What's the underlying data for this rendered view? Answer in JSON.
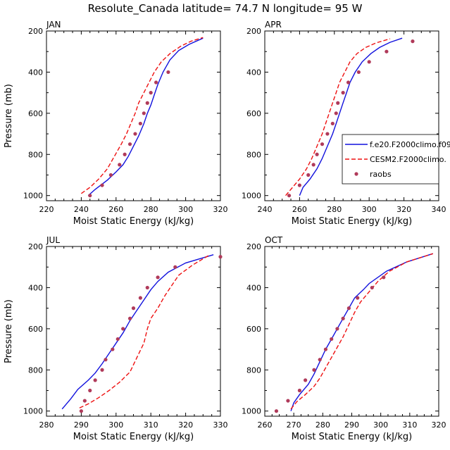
{
  "title": "Resolute_Canada  latitude= 74.7 N longitude= 95 W",
  "colors": {
    "model1": "#1111dd",
    "model2": "#ee1111",
    "obs": "#b03a5a"
  },
  "legend": {
    "panel": 1,
    "placement": "right",
    "entries": [
      {
        "label": "f.e20.F2000climo.f09",
        "style": "solid",
        "color": "#1111dd"
      },
      {
        "label": "CESM2.F2000climo.",
        "style": "dashed",
        "color": "#ee1111"
      },
      {
        "label": "raobs",
        "style": "dot",
        "color": "#b03a5a"
      }
    ]
  },
  "chart_data": [
    {
      "type": "line",
      "month": "JAN",
      "xlabel": "Moist Static Energy (kJ/kg)",
      "ylabel": "Pressure (mb)",
      "xlim": [
        220,
        320
      ],
      "ylim": [
        1025,
        200
      ],
      "y_inverted": true,
      "xticks": [
        220,
        240,
        260,
        280,
        300,
        320
      ],
      "yticks": [
        200,
        400,
        600,
        800,
        1000
      ],
      "series": [
        {
          "style": "solid",
          "color": "#1111dd",
          "points": [
            [
              244,
              1000
            ],
            [
              248,
              970
            ],
            [
              255,
              925
            ],
            [
              260,
              885
            ],
            [
              264,
              850
            ],
            [
              267,
              810
            ],
            [
              270,
              760
            ],
            [
              273,
              710
            ],
            [
              276,
              650
            ],
            [
              278,
              600
            ],
            [
              280,
              560
            ],
            [
              282,
              510
            ],
            [
              284,
              460
            ],
            [
              287,
              400
            ],
            [
              291,
              340
            ],
            [
              296,
              295
            ],
            [
              302,
              265
            ],
            [
              310,
              235
            ]
          ]
        },
        {
          "style": "dashed",
          "color": "#ee1111",
          "points": [
            [
              240,
              990
            ],
            [
              245,
              960
            ],
            [
              250,
              920
            ],
            [
              255,
              870
            ],
            [
              259,
              810
            ],
            [
              263,
              750
            ],
            [
              266,
              700
            ],
            [
              269,
              640
            ],
            [
              271,
              600
            ],
            [
              273,
              550
            ],
            [
              276,
              500
            ],
            [
              279,
              450
            ],
            [
              282,
              400
            ],
            [
              286,
              350
            ],
            [
              291,
              310
            ],
            [
              297,
              275
            ],
            [
              303,
              250
            ],
            [
              310,
              232
            ]
          ]
        },
        {
          "style": "dots",
          "color": "#b03a5a",
          "points": [
            [
              245,
              1000
            ],
            [
              252,
              950
            ],
            [
              257,
              900
            ],
            [
              262,
              850
            ],
            [
              265,
              800
            ],
            [
              268,
              750
            ],
            [
              271,
              700
            ],
            [
              274,
              650
            ],
            [
              276,
              600
            ],
            [
              278,
              550
            ],
            [
              280,
              500
            ],
            [
              283,
              450
            ],
            [
              290,
              400
            ]
          ]
        }
      ]
    },
    {
      "type": "line",
      "month": "APR",
      "xlabel": "Moist Static Energy (kJ/kg)",
      "ylabel": "",
      "xlim": [
        240,
        340
      ],
      "ylim": [
        1025,
        200
      ],
      "y_inverted": true,
      "xticks": [
        240,
        260,
        280,
        300,
        320,
        340
      ],
      "yticks": [
        200,
        400,
        600,
        800,
        1000
      ],
      "series": [
        {
          "style": "solid",
          "color": "#1111dd",
          "points": [
            [
              260,
              1000
            ],
            [
              262,
              960
            ],
            [
              266,
              920
            ],
            [
              270,
              870
            ],
            [
              273,
              820
            ],
            [
              276,
              760
            ],
            [
              279,
              700
            ],
            [
              281,
              650
            ],
            [
              283,
              600
            ],
            [
              285,
              550
            ],
            [
              287,
              500
            ],
            [
              289,
              450
            ],
            [
              292,
              400
            ],
            [
              296,
              350
            ],
            [
              301,
              310
            ],
            [
              306,
              280
            ],
            [
              312,
              255
            ],
            [
              319,
              235
            ]
          ]
        },
        {
          "style": "dashed",
          "color": "#ee1111",
          "points": [
            [
              252,
              1000
            ],
            [
              256,
              960
            ],
            [
              260,
              920
            ],
            [
              264,
              870
            ],
            [
              267,
              820
            ],
            [
              270,
              760
            ],
            [
              273,
              700
            ],
            [
              275,
              650
            ],
            [
              277,
              600
            ],
            [
              279,
              550
            ],
            [
              281,
              500
            ],
            [
              283,
              450
            ],
            [
              286,
              400
            ],
            [
              289,
              350
            ],
            [
              293,
              310
            ],
            [
              298,
              280
            ],
            [
              304,
              258
            ],
            [
              312,
              238
            ]
          ]
        },
        {
          "style": "dots",
          "color": "#b03a5a",
          "points": [
            [
              254,
              1000
            ],
            [
              260,
              950
            ],
            [
              265,
              900
            ],
            [
              268,
              850
            ],
            [
              270,
              800
            ],
            [
              273,
              750
            ],
            [
              276,
              700
            ],
            [
              279,
              650
            ],
            [
              281,
              600
            ],
            [
              282,
              550
            ],
            [
              285,
              500
            ],
            [
              288,
              450
            ],
            [
              294,
              400
            ],
            [
              300,
              350
            ],
            [
              310,
              300
            ],
            [
              325,
              250
            ]
          ]
        }
      ]
    },
    {
      "type": "line",
      "month": "JUL",
      "xlabel": "Moist Static Energy (kJ/kg)",
      "ylabel": "Pressure (mb)",
      "xlim": [
        280,
        330
      ],
      "ylim": [
        1025,
        200
      ],
      "y_inverted": true,
      "xticks": [
        280,
        290,
        300,
        310,
        320,
        330
      ],
      "yticks": [
        200,
        400,
        600,
        800,
        1000
      ],
      "series": [
        {
          "style": "solid",
          "color": "#1111dd",
          "points": [
            [
              284.5,
              990
            ],
            [
              287,
              940
            ],
            [
              289,
              895
            ],
            [
              292,
              850
            ],
            [
              294,
              815
            ],
            [
              296,
              770
            ],
            [
              298,
              720
            ],
            [
              300,
              670
            ],
            [
              302,
              620
            ],
            [
              304,
              560
            ],
            [
              306,
              510
            ],
            [
              308,
              460
            ],
            [
              310,
              410
            ],
            [
              312,
              370
            ],
            [
              315,
              325
            ],
            [
              320,
              280
            ],
            [
              328,
              240
            ]
          ]
        },
        {
          "style": "dashed",
          "color": "#ee1111",
          "points": [
            [
              289.5,
              985
            ],
            [
              292,
              965
            ],
            [
              295,
              935
            ],
            [
              298,
              900
            ],
            [
              301,
              860
            ],
            [
              304,
              810
            ],
            [
              306,
              740
            ],
            [
              308,
              670
            ],
            [
              309,
              600
            ],
            [
              310,
              550
            ],
            [
              312,
              500
            ],
            [
              314,
              440
            ],
            [
              316,
              390
            ],
            [
              318,
              340
            ],
            [
              322,
              290
            ],
            [
              327,
              240
            ]
          ]
        },
        {
          "style": "dots",
          "color": "#b03a5a",
          "points": [
            [
              290,
              1000
            ],
            [
              291,
              950
            ],
            [
              292.5,
              900
            ],
            [
              294,
              850
            ],
            [
              296,
              800
            ],
            [
              297,
              750
            ],
            [
              299,
              700
            ],
            [
              300.5,
              650
            ],
            [
              302,
              600
            ],
            [
              304,
              550
            ],
            [
              305,
              500
            ],
            [
              307,
              450
            ],
            [
              309,
              400
            ],
            [
              312,
              350
            ],
            [
              317,
              300
            ],
            [
              330,
              250
            ]
          ]
        }
      ]
    },
    {
      "type": "line",
      "month": "OCT",
      "xlabel": "Moist Static Energy (kJ/kg)",
      "ylabel": "",
      "xlim": [
        260,
        320
      ],
      "ylim": [
        1025,
        200
      ],
      "y_inverted": true,
      "xticks": [
        260,
        270,
        280,
        290,
        300,
        310,
        320
      ],
      "yticks": [
        200,
        400,
        600,
        800,
        1000
      ],
      "series": [
        {
          "style": "solid",
          "color": "#1111dd",
          "points": [
            [
              269,
              1000
            ],
            [
              270,
              960
            ],
            [
              272,
              920
            ],
            [
              275,
              870
            ],
            [
              277,
              820
            ],
            [
              279,
              760
            ],
            [
              281,
              700
            ],
            [
              283,
              650
            ],
            [
              285,
              600
            ],
            [
              287,
              550
            ],
            [
              289,
              500
            ],
            [
              291,
              450
            ],
            [
              294,
              410
            ],
            [
              296,
              380
            ],
            [
              302,
              320
            ],
            [
              309,
              275
            ],
            [
              318,
              235
            ]
          ]
        },
        {
          "style": "dashed",
          "color": "#ee1111",
          "points": [
            [
              269,
              990
            ],
            [
              271,
              955
            ],
            [
              274,
              920
            ],
            [
              277,
              880
            ],
            [
              279,
              840
            ],
            [
              281,
              790
            ],
            [
              283,
              740
            ],
            [
              285,
              690
            ],
            [
              287,
              640
            ],
            [
              289,
              580
            ],
            [
              291,
              520
            ],
            [
              293,
              470
            ],
            [
              296,
              420
            ],
            [
              299,
              370
            ],
            [
              303,
              320
            ],
            [
              309,
              275
            ],
            [
              318,
              235
            ]
          ]
        },
        {
          "style": "dots",
          "color": "#b03a5a",
          "points": [
            [
              264,
              1000
            ],
            [
              268,
              950
            ],
            [
              272,
              900
            ],
            [
              274,
              850
            ],
            [
              277,
              800
            ],
            [
              279,
              750
            ],
            [
              281,
              700
            ],
            [
              283,
              650
            ],
            [
              285,
              600
            ],
            [
              287,
              550
            ],
            [
              289,
              500
            ],
            [
              292,
              450
            ],
            [
              297,
              400
            ],
            [
              301,
              350
            ]
          ]
        }
      ]
    }
  ]
}
